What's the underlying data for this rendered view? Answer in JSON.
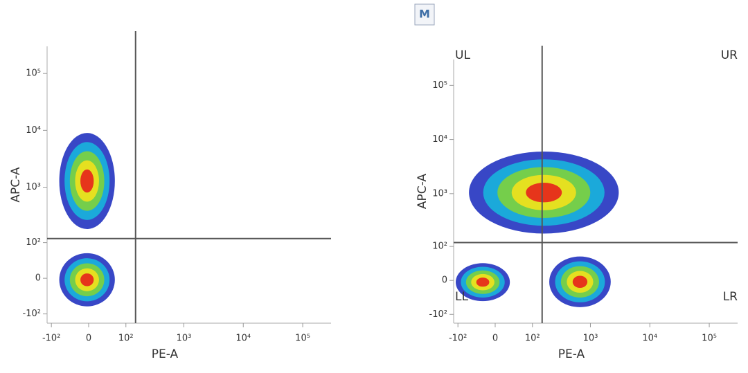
{
  "toolbar": {
    "button": "M"
  },
  "chart_data": [
    {
      "type": "density",
      "scale": "biexponential",
      "xlabel": "PE-A",
      "ylabel": "APC-A",
      "xlim": [
        -120,
        300000
      ],
      "ylim": [
        -150,
        300000
      ],
      "xticks": [
        {
          "value": -100,
          "label": "-10²"
        },
        0,
        {
          "value": 100,
          "label": "10²"
        },
        {
          "value": 1000,
          "label": "10³"
        },
        {
          "value": 10000,
          "label": "10⁴"
        },
        {
          "value": 100000,
          "label": "10⁵"
        }
      ],
      "yticks": [
        {
          "value": -100,
          "label": "-10²"
        },
        0,
        {
          "value": 100,
          "label": "10²"
        },
        {
          "value": 1000,
          "label": "10³"
        },
        {
          "value": 10000,
          "label": "10⁴"
        },
        {
          "value": 100000,
          "label": "10⁵"
        }
      ],
      "gate": {
        "x": 150,
        "y": 120
      },
      "colors": [
        "#2233c0",
        "#18b4dc",
        "#7fd13b",
        "#f2e21c",
        "#e5221b"
      ],
      "populations": [
        {
          "x_range": [
            -70,
            60
          ],
          "y_range": [
            180,
            9000
          ]
        },
        {
          "x_range": [
            -70,
            60
          ],
          "y_range": [
            -70,
            60
          ]
        }
      ]
    },
    {
      "type": "density",
      "scale": "biexponential",
      "xlabel": "PE-A",
      "ylabel": "APC-A",
      "xlim": [
        -120,
        300000
      ],
      "ylim": [
        -150,
        300000
      ],
      "xticks": [
        {
          "value": -100,
          "label": "-10²"
        },
        0,
        {
          "value": 100,
          "label": "10²"
        },
        {
          "value": 1000,
          "label": "10³"
        },
        {
          "value": 10000,
          "label": "10⁴"
        },
        {
          "value": 100000,
          "label": "10⁵"
        }
      ],
      "yticks": [
        {
          "value": -100,
          "label": "-10²"
        },
        0,
        {
          "value": 100,
          "label": "10²"
        },
        {
          "value": 1000,
          "label": "10³"
        },
        {
          "value": 10000,
          "label": "10⁴"
        },
        {
          "value": 100000,
          "label": "10⁵"
        }
      ],
      "gate": {
        "x": 150,
        "y": 120
      },
      "quadrant_labels": [
        "UL",
        "UR",
        "LL",
        "LR"
      ],
      "colors": [
        "#2233c0",
        "#18b4dc",
        "#7fd13b",
        "#f2e21c",
        "#e5221b"
      ],
      "populations": [
        {
          "x_range": [
            -60,
            3000
          ],
          "y_range": [
            180,
            6000
          ]
        },
        {
          "x_range": [
            200,
            2200
          ],
          "y_range": [
            -70,
            60
          ]
        },
        {
          "x_range": [
            -110,
            30
          ],
          "y_range": [
            -50,
            40
          ]
        }
      ]
    }
  ]
}
